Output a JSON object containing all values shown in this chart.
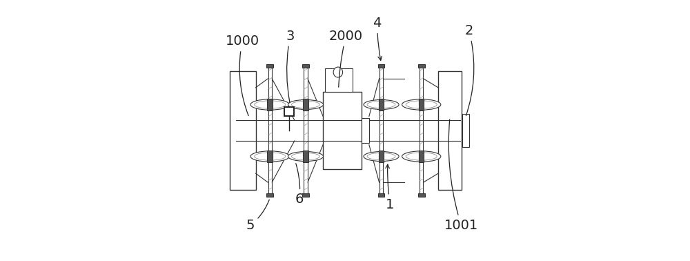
{
  "bg_color": "#ffffff",
  "line_color": "#333333",
  "dark_color": "#222222",
  "gray_color": "#888888",
  "light_gray": "#bbbbbb",
  "fill_gray": "#cccccc",
  "dark_fill": "#555555",
  "label_fontsize": 14,
  "figsize": [
    10.0,
    3.78
  ],
  "dpi": 100
}
